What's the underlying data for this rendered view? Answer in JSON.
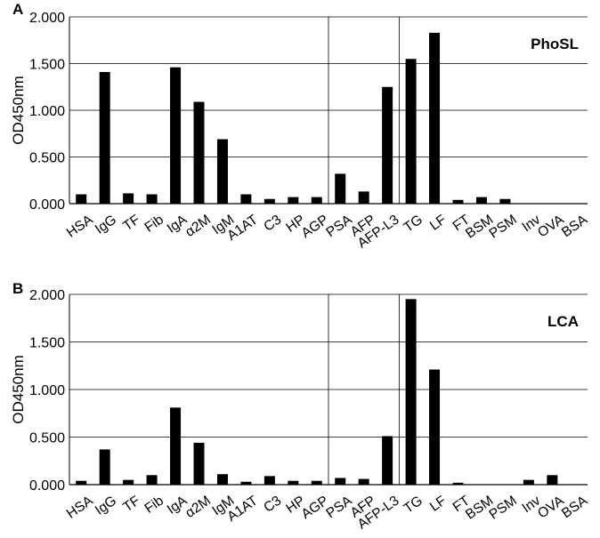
{
  "chart_data": [
    {
      "type": "bar",
      "panel_label": "A",
      "series_label": "PhoSL",
      "ylabel": "OD450nm",
      "ylim": [
        0,
        2.0
      ],
      "yticks": [
        "0.000",
        "0.500",
        "1.000",
        "1.500",
        "2.000"
      ],
      "gridlines": true,
      "bar_color": "#000000",
      "categories": [
        "HSA",
        "IgG",
        "TF",
        "Fib",
        "IgA",
        "α2M",
        "IgM",
        "A1AT",
        "C3",
        "HP",
        "AGP",
        "PSA",
        "AFP",
        "AFP-L3",
        "TG",
        "LF",
        "FT",
        "BSM",
        "PSM",
        "Inv",
        "OVA",
        "BSA"
      ],
      "values": [
        0.1,
        1.41,
        0.11,
        0.1,
        1.46,
        1.09,
        0.69,
        0.1,
        0.05,
        0.07,
        0.07,
        0.32,
        0.13,
        1.25,
        1.55,
        1.83,
        0.04,
        0.07,
        0.05,
        0,
        0,
        0
      ],
      "group_separators_after": [
        "AGP",
        "AFP-L3"
      ]
    },
    {
      "type": "bar",
      "panel_label": "B",
      "series_label": "LCA",
      "ylabel": "OD450nm",
      "ylim": [
        0,
        2.0
      ],
      "yticks": [
        "0.000",
        "0.500",
        "1.000",
        "1.500",
        "2.000"
      ],
      "gridlines": true,
      "bar_color": "#000000",
      "categories": [
        "HSA",
        "IgG",
        "TF",
        "Fib",
        "IgA",
        "α2M",
        "IgM",
        "A1AT",
        "C3",
        "HP",
        "AGP",
        "PSA",
        "AFP",
        "AFP-L3",
        "TG",
        "LF",
        "FT",
        "BSM",
        "PSM",
        "Inv",
        "OVA",
        "BSA"
      ],
      "values": [
        0.04,
        0.37,
        0.05,
        0.1,
        0.81,
        0.44,
        0.11,
        0.03,
        0.09,
        0.04,
        0.04,
        0.07,
        0.06,
        0.51,
        1.95,
        1.21,
        0.02,
        0,
        0,
        0.05,
        0.1,
        0
      ],
      "group_separators_after": [
        "AGP",
        "AFP-L3"
      ]
    }
  ]
}
